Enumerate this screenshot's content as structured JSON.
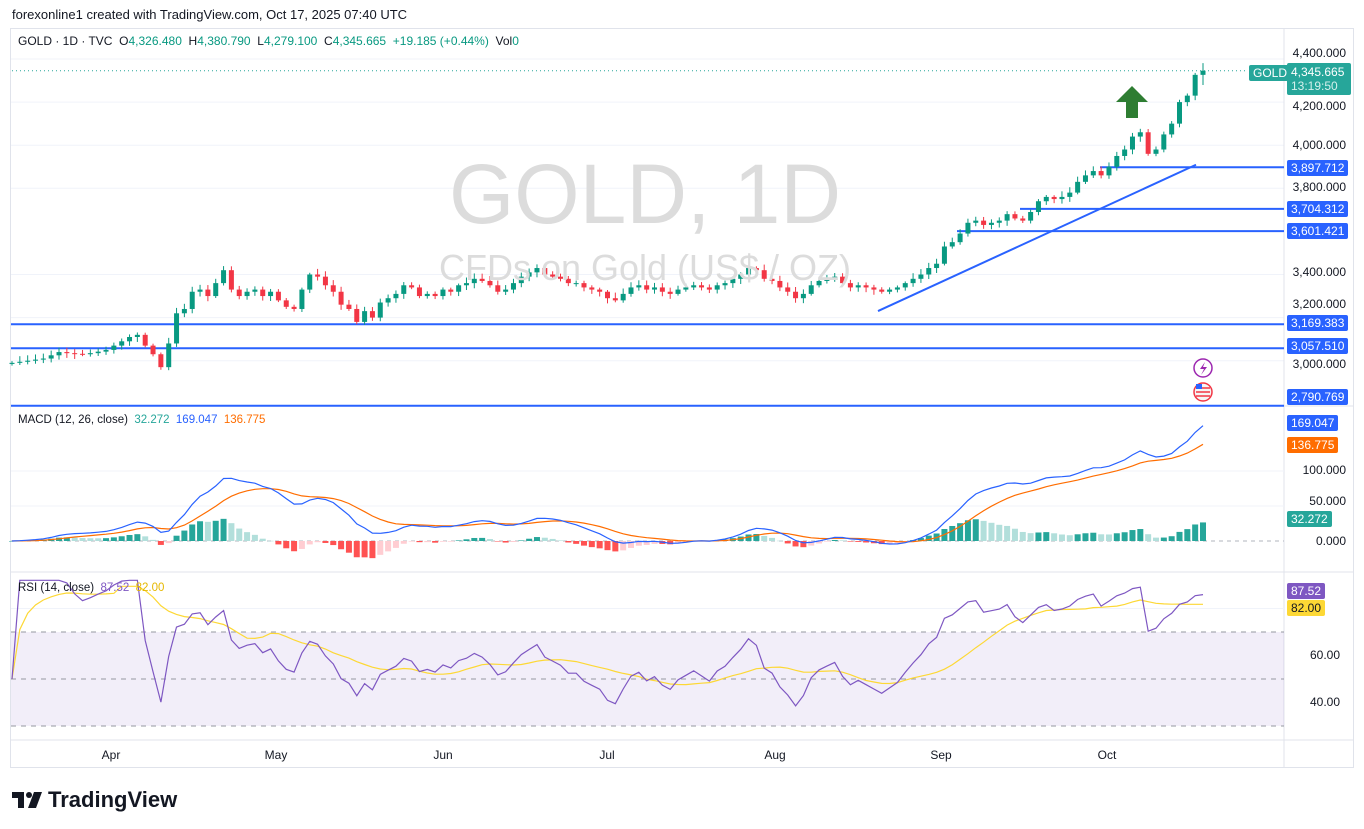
{
  "credit": "forexonline1 created with TradingView.com, Oct 17, 2025 07:40 UTC",
  "symbol": "GOLD · 1D · TVC",
  "ohlc": {
    "o_label": "O",
    "o": "4,326.480",
    "h_label": "H",
    "h": "4,380.790",
    "l_label": "L",
    "l": "4,279.100",
    "c_label": "C",
    "c": "4,345.665",
    "change": "+19.185 (+0.44%)",
    "vol_label": "Vol",
    "vol": "0"
  },
  "watermark": {
    "title": "GOLD, 1D",
    "subtitle": "CFDs on Gold (US$ / OZ)"
  },
  "colors": {
    "up": "#089981",
    "down": "#f23645",
    "line": "#2962ff",
    "macd": "#2962ff",
    "signal": "#ff6d00",
    "rsi": "#7e57c2",
    "rsi_ma": "#fdd835"
  },
  "chart_data": [
    {
      "type": "candlestick",
      "title": "GOLD, 1D",
      "ylim": [
        2760,
        4420
      ],
      "y_ticks": [
        "4,400.000",
        "4,200.000",
        "4,000.000",
        "3,800.000",
        "3,400.000",
        "3,200.000",
        "3,000.000"
      ],
      "x_ticks": [
        "Apr",
        "May",
        "Jun",
        "Jul",
        "Aug",
        "Sep",
        "Oct"
      ],
      "closes": [
        2990,
        2995,
        3000,
        3005,
        3010,
        3025,
        3040,
        3035,
        3032,
        3030,
        3035,
        3042,
        3050,
        3070,
        3090,
        3110,
        3120,
        3070,
        3030,
        2970,
        3080,
        3220,
        3240,
        3320,
        3330,
        3300,
        3360,
        3420,
        3330,
        3300,
        3320,
        3330,
        3300,
        3320,
        3280,
        3250,
        3240,
        3330,
        3400,
        3390,
        3350,
        3320,
        3260,
        3240,
        3180,
        3230,
        3200,
        3270,
        3290,
        3310,
        3350,
        3340,
        3300,
        3310,
        3300,
        3330,
        3320,
        3350,
        3360,
        3380,
        3370,
        3350,
        3320,
        3330,
        3360,
        3390,
        3410,
        3430,
        3400,
        3390,
        3380,
        3360,
        3360,
        3340,
        3330,
        3320,
        3290,
        3280,
        3310,
        3340,
        3350,
        3330,
        3340,
        3320,
        3310,
        3330,
        3340,
        3350,
        3340,
        3330,
        3350,
        3360,
        3380,
        3400,
        3430,
        3420,
        3380,
        3370,
        3340,
        3320,
        3290,
        3310,
        3350,
        3370,
        3380,
        3390,
        3360,
        3340,
        3350,
        3340,
        3330,
        3320,
        3330,
        3340,
        3360,
        3380,
        3400,
        3430,
        3450,
        3530,
        3550,
        3590,
        3640,
        3650,
        3630,
        3640,
        3650,
        3680,
        3660,
        3650,
        3690,
        3740,
        3760,
        3750,
        3760,
        3780,
        3830,
        3860,
        3880,
        3860,
        3900,
        3950,
        3980,
        4040,
        4060,
        3960,
        3980,
        4050,
        4100,
        4200,
        4230,
        4326.48,
        4345.665
      ],
      "last_bar": {
        "open": 4326.48,
        "high": 4380.79,
        "low": 4279.1,
        "close": 4345.665
      },
      "horizontal_levels": [
        "3,897.712",
        "3,704.312",
        "3,601.421",
        "3,169.383",
        "3,057.510",
        "2,790.769"
      ],
      "level_values": [
        3897.712,
        3704.312,
        3601.421,
        3169.383,
        3057.51,
        2790.769
      ],
      "price_tag": {
        "symbol": "GOLD",
        "price": "4,345.665",
        "countdown": "13:19:50"
      },
      "trendline": {
        "from": 3300,
        "to": 3900
      }
    },
    {
      "type": "line",
      "title": "MACD (12, 26, close)",
      "series": [
        {
          "name": "MACD",
          "last": "169.047"
        },
        {
          "name": "Signal",
          "last": "136.775"
        },
        {
          "name": "Histogram",
          "last": "32.272"
        }
      ],
      "y_ticks": [
        "100.000",
        "50.000",
        "0.000"
      ],
      "ylim": [
        -35,
        180
      ]
    },
    {
      "type": "line",
      "title": "RSI (14, close)",
      "series": [
        {
          "name": "RSI",
          "last": "87.52"
        },
        {
          "name": "RSI MA",
          "last": "82.00"
        }
      ],
      "y_ticks": [
        "60.00",
        "40.00"
      ],
      "bands": [
        70,
        50,
        30
      ],
      "ylim": [
        20,
        95
      ]
    }
  ],
  "logo": "TradingView"
}
